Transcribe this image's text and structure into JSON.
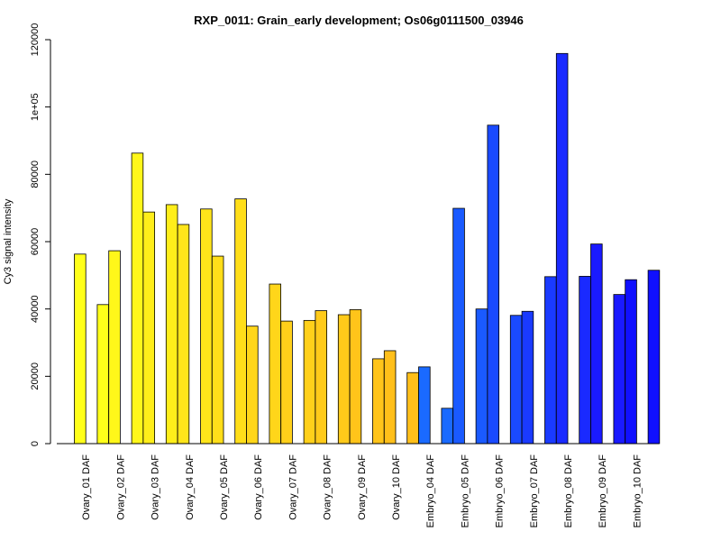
{
  "chart_data": {
    "type": "bar",
    "title": "RXP_0011: Grain_early development; Os06g0111500_03946",
    "xlabel": "",
    "ylabel": "Cy3 signal intensity",
    "ylim": [
      0,
      120000
    ],
    "yticks": [
      0,
      20000,
      40000,
      60000,
      80000,
      100000,
      120000
    ],
    "ytick_labels": [
      "0",
      "20000",
      "40000",
      "60000",
      "80000",
      "1e+05",
      "120000"
    ],
    "grid": false,
    "categories": [
      "Ovary_01 DAF",
      "Ovary_02 DAF",
      "Ovary_03 DAF",
      "Ovary_04 DAF",
      "Ovary_05 DAF",
      "Ovary_06 DAF",
      "Ovary_07 DAF",
      "Ovary_08 DAF",
      "Ovary_09 DAF",
      "Ovary_10 DAF",
      "Embryo_04 DAF",
      "Embryo_05 DAF",
      "Embryo_06 DAF",
      "Embryo_07 DAF",
      "Embryo_08 DAF",
      "Embryo_09 DAF",
      "Embryo_10 DAF"
    ],
    "colors": [
      "#ffff1a",
      "#fff71a",
      "#ffee1a",
      "#ffe51a",
      "#ffde1a",
      "#ffd61a",
      "#ffd01a",
      "#ffca1a",
      "#ffc41a",
      "#ffbf1a",
      "#1a6aff",
      "#1a5aff",
      "#1a4aff",
      "#1a3aff",
      "#1a2aff",
      "#1a1aff",
      "#1010ff"
    ],
    "series": [
      {
        "values": [
          56300,
          57300,
          68800,
          65100,
          55700,
          34900,
          36400,
          39500,
          39800,
          27600,
          22800,
          69900,
          94600,
          39300,
          115900,
          59300,
          48700
        ]
      },
      {
        "values": [
          41300,
          86300,
          71000,
          69700,
          72700,
          47400,
          36600,
          38300,
          25200,
          21100,
          10500,
          40000,
          38100,
          49600,
          49700,
          44300,
          51500
        ]
      }
    ]
  }
}
